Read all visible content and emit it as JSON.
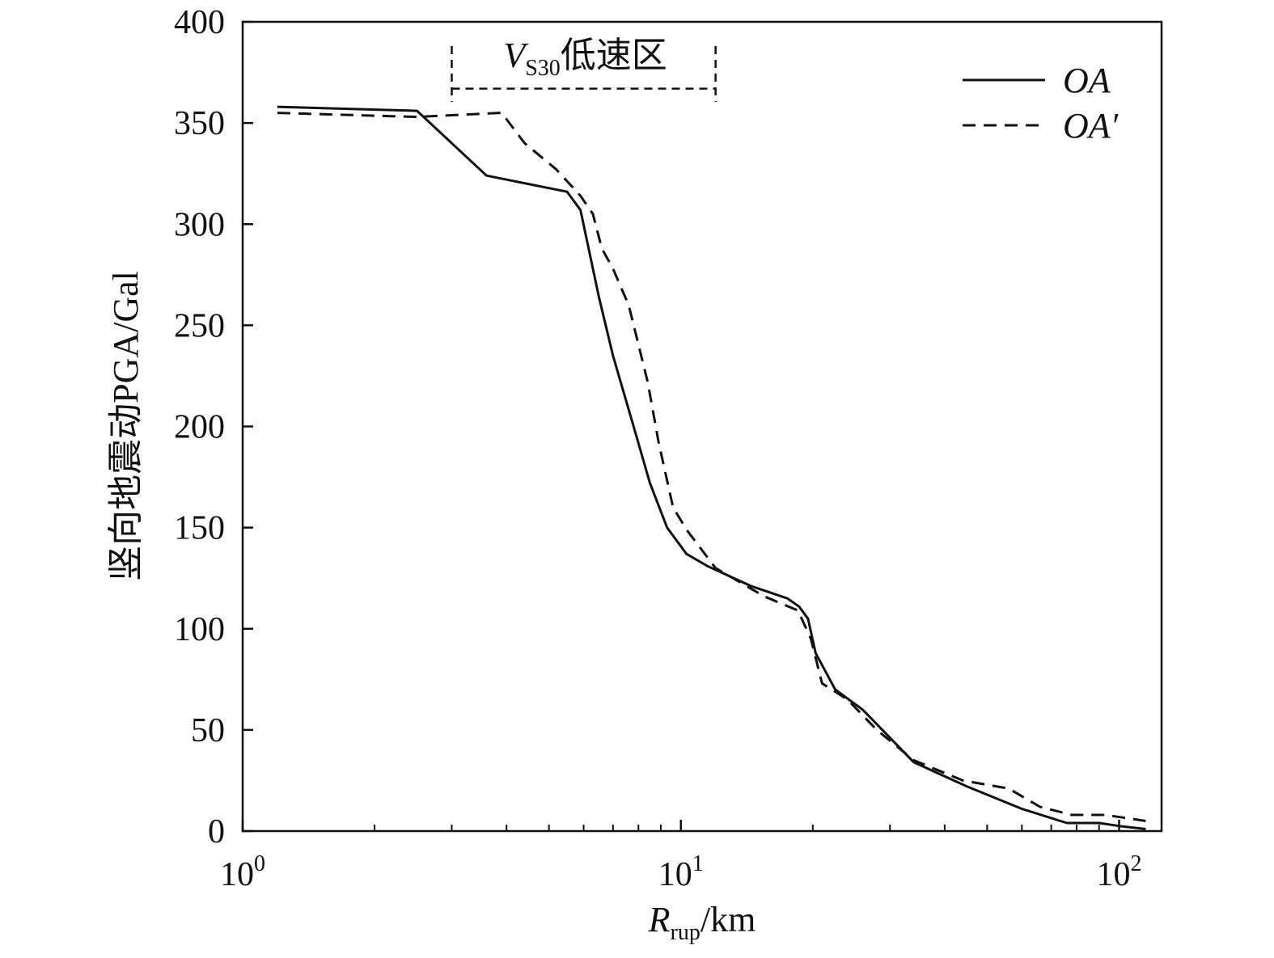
{
  "chart_data": {
    "type": "line",
    "title": "",
    "xlabel": {
      "main": "R",
      "sub": "rup",
      "unit": "/km"
    },
    "ylabel": "竖向地震动PGA/Gal",
    "xscale": "log",
    "xlim": [
      1,
      125
    ],
    "ylim": [
      0,
      400
    ],
    "x_ticks": [
      {
        "base": "10",
        "exp": "0",
        "value": 1
      },
      {
        "base": "10",
        "exp": "1",
        "value": 10
      },
      {
        "base": "10",
        "exp": "2",
        "value": 100
      }
    ],
    "y_ticks": [
      "0",
      "50",
      "100",
      "150",
      "200",
      "250",
      "300",
      "350",
      "400"
    ],
    "legend_position": "top-right",
    "grid": false,
    "annotation": {
      "main": "V",
      "sub": "S30",
      "text": "低速区",
      "x_range": [
        3,
        12
      ],
      "y_level": 367
    },
    "series": [
      {
        "name": "OA",
        "style": "solid",
        "x": [
          1.2,
          2.5,
          3.6,
          5.5,
          5.9,
          6.5,
          7.0,
          7.8,
          8.5,
          9.3,
          10.3,
          11.5,
          14.5,
          17.5,
          18.6,
          19.5,
          20.3,
          22.5,
          26.0,
          34.0,
          45.0,
          60.0,
          76.0,
          90.0,
          100.0,
          115.0
        ],
        "y": [
          358,
          356,
          324,
          316,
          307,
          264,
          235,
          200,
          172,
          150,
          137,
          131,
          121,
          115,
          111,
          105,
          88,
          70,
          60,
          34,
          22,
          11,
          4,
          4,
          2.5,
          1
        ]
      },
      {
        "name": "OA′",
        "style": "dashed",
        "x": [
          1.2,
          2.5,
          3.9,
          4.4,
          5.2,
          5.9,
          6.3,
          6.6,
          7.0,
          7.6,
          8.4,
          8.9,
          9.6,
          10.3,
          12.0,
          15.5,
          18.5,
          19.8,
          21.0,
          24.0,
          28.0,
          34.0,
          44.0,
          56.0,
          66.0,
          78.0,
          93.0,
          115.0
        ],
        "y": [
          355,
          353,
          355,
          340,
          327,
          314,
          305,
          288,
          278,
          260,
          222,
          192,
          160,
          149,
          130,
          116,
          109,
          95,
          73,
          65,
          50,
          35,
          25,
          21,
          12,
          8,
          8,
          5
        ]
      }
    ]
  }
}
